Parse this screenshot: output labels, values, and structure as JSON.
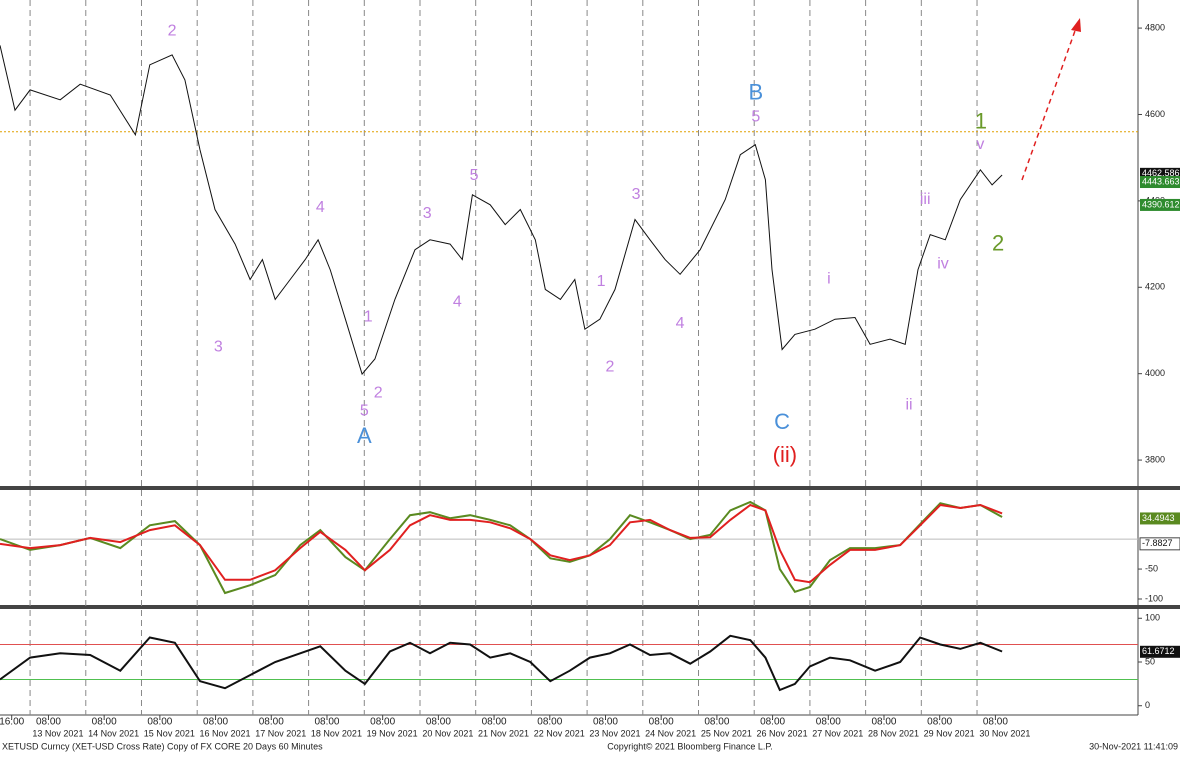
{
  "x_axis": {
    "xlim": [
      -0.54,
      19.89
    ],
    "day_lines": [
      0,
      1,
      2,
      3,
      4,
      5,
      6,
      7,
      8,
      9,
      10,
      11,
      12,
      13,
      14,
      15,
      16,
      17
    ],
    "xticks": [
      {
        "value": -0.33,
        "label": "16:00"
      },
      {
        "value": 0.33,
        "label": "08:00"
      },
      {
        "value": 1.33,
        "label": "08:00"
      },
      {
        "value": 2.33,
        "label": "08:00"
      },
      {
        "value": 3.33,
        "label": "08:00"
      },
      {
        "value": 4.33,
        "label": "08:00"
      },
      {
        "value": 5.33,
        "label": "08:00"
      },
      {
        "value": 6.33,
        "label": "08:00"
      },
      {
        "value": 7.33,
        "label": "08:00"
      },
      {
        "value": 8.33,
        "label": "08:00"
      },
      {
        "value": 9.33,
        "label": "08:00"
      },
      {
        "value": 10.33,
        "label": "08:00"
      },
      {
        "value": 11.33,
        "label": "08:00"
      },
      {
        "value": 12.33,
        "label": "08:00"
      },
      {
        "value": 13.33,
        "label": "08:00"
      },
      {
        "value": 14.33,
        "label": "08:00"
      },
      {
        "value": 15.33,
        "label": "08:00"
      },
      {
        "value": 16.33,
        "label": "08:00"
      },
      {
        "value": 17.33,
        "label": "08:00"
      }
    ],
    "date_labels": [
      {
        "value": 0.5,
        "label": "13 Nov 2021"
      },
      {
        "value": 1.5,
        "label": "14 Nov 2021"
      },
      {
        "value": 2.5,
        "label": "15 Nov 2021"
      },
      {
        "value": 3.5,
        "label": "16 Nov 2021"
      },
      {
        "value": 4.5,
        "label": "17 Nov 2021"
      },
      {
        "value": 5.5,
        "label": "18 Nov 2021"
      },
      {
        "value": 6.5,
        "label": "19 Nov 2021"
      },
      {
        "value": 7.5,
        "label": "20 Nov 2021"
      },
      {
        "value": 8.5,
        "label": "21 Nov 2021"
      },
      {
        "value": 9.5,
        "label": "22 Nov 2021"
      },
      {
        "value": 10.5,
        "label": "23 Nov 2021"
      },
      {
        "value": 11.5,
        "label": "24 Nov 2021"
      },
      {
        "value": 12.5,
        "label": "25 Nov 2021"
      },
      {
        "value": 13.5,
        "label": "26 Nov 2021"
      },
      {
        "value": 14.5,
        "label": "27 Nov 2021"
      },
      {
        "value": 15.5,
        "label": "28 Nov 2021"
      },
      {
        "value": 16.5,
        "label": "29 Nov 2021"
      },
      {
        "value": 17.5,
        "label": "30 Nov 2021"
      }
    ]
  },
  "chart_data": [
    {
      "type": "line",
      "ylim": [
        3740,
        4865
      ],
      "yticks": [
        3800,
        4000,
        4200,
        4400,
        4600,
        4800
      ],
      "reference_lines": [
        {
          "value": 4560,
          "color": "#e0a000"
        }
      ],
      "series": [
        {
          "color": "#111111",
          "x": [
            -0.54,
            -0.27,
            0,
            0.54,
            0.9,
            1.44,
            1.89,
            2.15,
            2.55,
            2.78,
            3.05,
            3.32,
            3.68,
            3.95,
            4.17,
            4.4,
            4.67,
            4.94,
            5.17,
            5.39,
            5.66,
            5.96,
            6.19,
            6.55,
            6.91,
            7.18,
            7.54,
            7.76,
            7.94,
            8.26,
            8.53,
            8.8,
            9.07,
            9.25,
            9.52,
            9.78,
            9.96,
            10.23,
            10.5,
            10.86,
            11.13,
            11.4,
            11.67,
            12.03,
            12.48,
            12.75,
            13.02,
            13.2,
            13.32,
            13.5,
            13.73,
            14.09,
            14.45,
            14.81,
            15.08,
            15.44,
            15.71,
            15.94,
            16.16,
            16.43,
            16.7,
            17.06,
            17.27,
            17.45
          ],
          "values": [
            4760,
            4610,
            4657,
            4634,
            4670,
            4645,
            4553,
            4715,
            4738,
            4680,
            4518,
            4380,
            4300,
            4218,
            4264,
            4172,
            4218,
            4264,
            4310,
            4240,
            4126,
            3999,
            4034,
            4172,
            4287,
            4310,
            4300,
            4264,
            4414,
            4391,
            4345,
            4380,
            4310,
            4195,
            4172,
            4218,
            4103,
            4126,
            4195,
            4357,
            4310,
            4264,
            4230,
            4287,
            4403,
            4507,
            4530,
            4449,
            4241,
            4056,
            4091,
            4103,
            4126,
            4130,
            4068,
            4080,
            4068,
            4241,
            4322,
            4310,
            4403,
            4472,
            4437,
            4460
          ]
        }
      ],
      "last_labels": [
        {
          "value": 4462.586,
          "label": "4462.586",
          "color": "#111111"
        },
        {
          "value": 4443.663,
          "label": "4443.663",
          "color": "#2e8b2e"
        },
        {
          "value": 4390.612,
          "label": "4390.612",
          "color": "#2e8b2e"
        }
      ],
      "annotations": [
        {
          "text": "2",
          "x": 2.55,
          "y": 4793,
          "color": "#c080e0"
        },
        {
          "text": "3",
          "x": 3.38,
          "y": 4061,
          "color": "#c080e0"
        },
        {
          "text": "4",
          "x": 5.21,
          "y": 4384,
          "color": "#c080e0"
        },
        {
          "text": "5",
          "x": 6.0,
          "y": 3913,
          "color": "#c080e0"
        },
        {
          "text": "A",
          "x": 6.0,
          "y": 3853,
          "color": "#4a90d9",
          "size": "big"
        },
        {
          "text": "1",
          "x": 6.07,
          "y": 4130,
          "color": "#c080e0"
        },
        {
          "text": "2",
          "x": 6.25,
          "y": 3955,
          "color": "#c080e0"
        },
        {
          "text": "3",
          "x": 7.13,
          "y": 4370,
          "color": "#c080e0"
        },
        {
          "text": "4",
          "x": 7.67,
          "y": 4165,
          "color": "#c080e0"
        },
        {
          "text": "5",
          "x": 7.97,
          "y": 4458,
          "color": "#c080e0"
        },
        {
          "text": "1",
          "x": 10.25,
          "y": 4213,
          "color": "#c080e0"
        },
        {
          "text": "2",
          "x": 10.41,
          "y": 4015,
          "color": "#c080e0"
        },
        {
          "text": "3",
          "x": 10.88,
          "y": 4414,
          "color": "#c080e0"
        },
        {
          "text": "4",
          "x": 11.67,
          "y": 4116,
          "color": "#c080e0"
        },
        {
          "text": "5",
          "x": 13.03,
          "y": 4594,
          "color": "#c080e0"
        },
        {
          "text": "B",
          "x": 13.03,
          "y": 4648,
          "color": "#4a90d9",
          "size": "big"
        },
        {
          "text": "C",
          "x": 13.5,
          "y": 3885,
          "color": "#4a90d9",
          "size": "big"
        },
        {
          "text": "(ii)",
          "x": 13.55,
          "y": 3809,
          "color": "#e02020",
          "size": "big"
        },
        {
          "text": "i",
          "x": 14.34,
          "y": 4218,
          "color": "#c080e0"
        },
        {
          "text": "iii",
          "x": 16.07,
          "y": 4403,
          "color": "#c080e0"
        },
        {
          "text": "ii",
          "x": 15.78,
          "y": 3927,
          "color": "#c080e0"
        },
        {
          "text": "iv",
          "x": 16.39,
          "y": 4253,
          "color": "#c080e0"
        },
        {
          "text": "1",
          "x": 17.07,
          "y": 4581,
          "color": "#6a9a2a",
          "size": "big"
        },
        {
          "text": "v",
          "x": 17.06,
          "y": 4530,
          "color": "#c080e0"
        },
        {
          "text": "2",
          "x": 17.38,
          "y": 4299,
          "color": "#6a9a2a",
          "size": "big"
        }
      ]
    },
    {
      "type": "line",
      "ylim": [
        -110,
        82
      ],
      "yticks": [
        -100,
        -50
      ],
      "reference_lines": [
        {
          "value": 0,
          "color": "#bbbbbb"
        }
      ],
      "series": [
        {
          "color": "#5a8a20",
          "x": [
            -0.54,
            0,
            0.54,
            1.08,
            1.62,
            2.15,
            2.6,
            3.05,
            3.5,
            3.95,
            4.4,
            4.85,
            5.21,
            5.66,
            6.01,
            6.46,
            6.82,
            7.18,
            7.54,
            7.9,
            8.26,
            8.62,
            8.98,
            9.34,
            9.69,
            10.05,
            10.41,
            10.77,
            11.13,
            11.49,
            11.85,
            12.21,
            12.57,
            12.93,
            13.2,
            13.46,
            13.73,
            14.0,
            14.36,
            14.72,
            15.17,
            15.62,
            15.98,
            16.34,
            16.7,
            17.06,
            17.45
          ],
          "values": [
            0,
            -18,
            -10,
            2,
            -15,
            23,
            30,
            -10,
            -90,
            -77,
            -60,
            -10,
            15,
            -30,
            -52,
            0,
            40,
            45,
            35,
            40,
            32,
            23,
            0,
            -32,
            -38,
            -27,
            0,
            40,
            28,
            15,
            0,
            7,
            48,
            62,
            48,
            -50,
            -88,
            -80,
            -35,
            -15,
            -15,
            -10,
            25,
            60,
            52,
            57,
            37
          ]
        },
        {
          "color": "#e02020",
          "x": [
            -0.54,
            0,
            0.54,
            1.08,
            1.62,
            2.15,
            2.6,
            3.05,
            3.5,
            3.95,
            4.4,
            4.85,
            5.21,
            5.66,
            6.01,
            6.46,
            6.82,
            7.18,
            7.54,
            7.9,
            8.26,
            8.62,
            8.98,
            9.34,
            9.69,
            10.05,
            10.41,
            10.77,
            11.13,
            11.49,
            11.85,
            12.21,
            12.57,
            12.93,
            13.2,
            13.46,
            13.73,
            14.0,
            14.36,
            14.72,
            15.17,
            15.62,
            15.98,
            16.34,
            16.7,
            17.06,
            17.45
          ],
          "values": [
            -8,
            -15,
            -10,
            2,
            -5,
            15,
            23,
            -10,
            -68,
            -68,
            -52,
            -15,
            12,
            -18,
            -52,
            -18,
            23,
            40,
            32,
            32,
            28,
            18,
            0,
            -27,
            -35,
            -27,
            -10,
            28,
            32,
            15,
            2,
            3,
            32,
            57,
            48,
            -18,
            -68,
            -72,
            -43,
            -18,
            -18,
            -10,
            23,
            57,
            52,
            57,
            43
          ]
        }
      ],
      "last_labels": [
        {
          "value": 34.4943,
          "label": "34.4943",
          "color": "#5a8a20"
        },
        {
          "value": -7.8827,
          "label": "-7.8827",
          "color": "#ffffff"
        }
      ]
    },
    {
      "type": "line",
      "ylim": [
        -10.6,
        110.6
      ],
      "yticks": [
        0,
        50,
        100
      ],
      "reference_lines": [
        {
          "value": 70,
          "color": "#e05050"
        },
        {
          "value": 30,
          "color": "#50c050"
        }
      ],
      "series": [
        {
          "color": "#111111",
          "x": [
            -0.54,
            0,
            0.54,
            1.08,
            1.62,
            2.15,
            2.6,
            3.05,
            3.5,
            3.95,
            4.4,
            4.85,
            5.21,
            5.66,
            6.01,
            6.46,
            6.82,
            7.18,
            7.54,
            7.9,
            8.26,
            8.62,
            8.98,
            9.34,
            9.69,
            10.05,
            10.41,
            10.77,
            11.13,
            11.49,
            11.85,
            12.21,
            12.57,
            12.93,
            13.2,
            13.46,
            13.73,
            14.0,
            14.36,
            14.72,
            15.17,
            15.62,
            15.98,
            16.34,
            16.7,
            17.06,
            17.45
          ],
          "values": [
            30,
            55,
            60,
            58,
            40,
            78,
            72,
            28,
            20,
            35,
            50,
            60,
            68,
            40,
            25,
            62,
            72,
            60,
            72,
            70,
            55,
            60,
            50,
            28,
            40,
            55,
            60,
            70,
            58,
            60,
            48,
            62,
            80,
            75,
            55,
            18,
            25,
            45,
            55,
            52,
            40,
            50,
            78,
            70,
            65,
            72,
            62
          ]
        }
      ],
      "last_labels": [
        {
          "value": 61.6712,
          "label": "61.6712",
          "color": "#111111"
        }
      ]
    }
  ],
  "footer": {
    "left": "XETUSD Curncy (XET-USD Cross Rate) Copy of FX CORE 20 Days 60 Minutes",
    "center": "Copyright© 2021 Bloomberg Finance L.P.",
    "right": "30-Nov-2021 11:41:09"
  }
}
